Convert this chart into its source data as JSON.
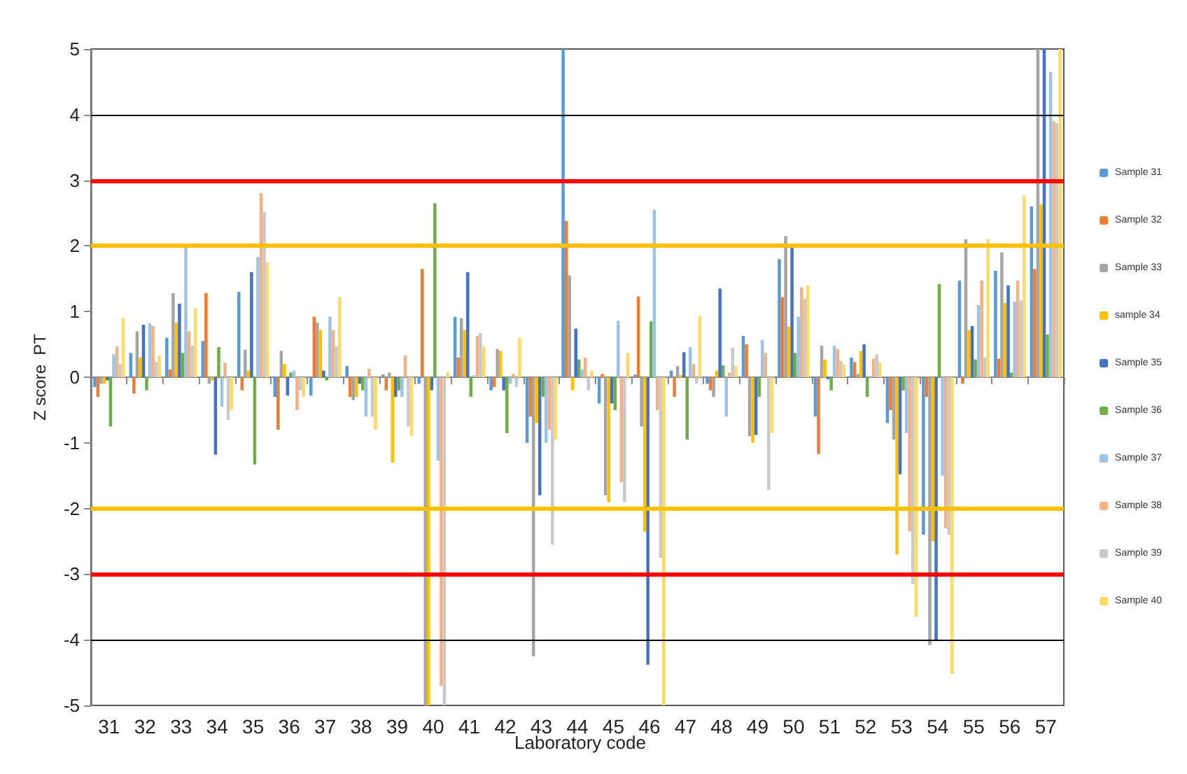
{
  "chart_data": {
    "type": "bar",
    "ylabel": "Z score  PT",
    "xlabel": "Laboratory code",
    "categories": [
      "31",
      "32",
      "33",
      "34",
      "35",
      "36",
      "37",
      "38",
      "39",
      "40",
      "41",
      "42",
      "43",
      "44",
      "45",
      "46",
      "47",
      "48",
      "49",
      "50",
      "51",
      "52",
      "53",
      "54",
      "55",
      "56",
      "57"
    ],
    "series": [
      {
        "name": "Sample 31",
        "color": "#5b9bd5",
        "values": [
          -0.15,
          0.37,
          0.6,
          0.55,
          1.3,
          -0.3,
          -0.28,
          0.17,
          0.04,
          -0.1,
          0.92,
          -0.2,
          -1.0,
          5,
          -0.4,
          0.04,
          0.1,
          -0.1,
          0.63,
          1.8,
          -0.6,
          0.3,
          -0.7,
          -2.4,
          1.47,
          1.62,
          2.6
        ]
      },
      {
        "name": "Sample 32",
        "color": "#ed7d31",
        "values": [
          -0.3,
          -0.25,
          0.12,
          1.28,
          -0.2,
          -0.8,
          0.92,
          -0.3,
          -0.2,
          1.65,
          0.3,
          -0.15,
          -0.6,
          2.38,
          0.05,
          1.23,
          -0.3,
          -0.2,
          0.5,
          1.22,
          -1.17,
          0.23,
          -0.5,
          -0.3,
          -0.1,
          0.28,
          1.65
        ]
      },
      {
        "name": "Sample 33",
        "color": "#a5a5a5",
        "values": [
          -0.1,
          0.7,
          1.28,
          -0.1,
          0.42,
          0.4,
          0.83,
          -0.35,
          0.07,
          -5,
          0.9,
          0.43,
          -4.25,
          1.55,
          -1.8,
          -0.75,
          0.17,
          -0.3,
          -0.9,
          2.15,
          0.48,
          0.05,
          -0.95,
          -4.08,
          2.1,
          1.9,
          5
        ]
      },
      {
        "name": "sample 34",
        "color": "#ffc000",
        "values": [
          -0.1,
          0.3,
          0.83,
          -0.05,
          0.1,
          0.2,
          0.72,
          -0.3,
          -1.3,
          -5,
          0.72,
          0.4,
          -0.7,
          -0.2,
          -1.9,
          -2.35,
          0.03,
          0.1,
          -1.0,
          0.77,
          0.27,
          0.4,
          -2.7,
          -2.5,
          0.72,
          1.13,
          2.63
        ]
      },
      {
        "name": "Sample 35",
        "color": "#4472c4",
        "values": [
          -0.05,
          0.8,
          1.12,
          -1.18,
          1.6,
          -0.28,
          0.1,
          -0.1,
          -0.3,
          -0.2,
          1.6,
          -0.2,
          -1.8,
          0.74,
          -0.4,
          -4.38,
          0.38,
          1.35,
          -0.88,
          1.97,
          -0.03,
          0.5,
          -1.48,
          -4.0,
          0.78,
          1.4,
          5
        ]
      },
      {
        "name": "Sample 36",
        "color": "#70ad47",
        "values": [
          -0.75,
          -0.2,
          0.37,
          0.46,
          -1.33,
          0.07,
          -0.05,
          -0.2,
          -0.2,
          2.65,
          -0.3,
          -0.85,
          -0.3,
          0.27,
          -0.5,
          0.85,
          -0.95,
          0.18,
          -0.3,
          0.37,
          -0.2,
          -0.3,
          -0.2,
          1.42,
          0.27,
          0.07,
          0.65
        ]
      },
      {
        "name": "Sample 37",
        "color": "#9dc3e6",
        "values": [
          0.35,
          0.82,
          2.0,
          -0.45,
          1.83,
          0.1,
          0.92,
          -0.6,
          -0.3,
          -1.27,
          0.03,
          -0.1,
          -1.0,
          0.12,
          0.86,
          2.55,
          0.46,
          -0.6,
          0.57,
          0.92,
          0.48,
          0.02,
          -0.85,
          -1.5,
          1.1,
          1.15,
          4.65
        ]
      },
      {
        "name": "Sample 38",
        "color": "#f4b183",
        "values": [
          0.47,
          0.78,
          0.7,
          0.22,
          2.8,
          -0.5,
          0.72,
          0.13,
          0.33,
          -4.7,
          0.63,
          0.05,
          -0.8,
          0.3,
          -1.6,
          -0.5,
          0.2,
          0.07,
          0.37,
          1.37,
          0.43,
          0.28,
          -2.35,
          -2.3,
          1.47,
          1.47,
          3.9
        ]
      },
      {
        "name": "Sample 39",
        "color": "#c9c9c9",
        "values": [
          0.2,
          0.23,
          0.48,
          -0.65,
          2.52,
          -0.2,
          0.47,
          -0.6,
          -0.75,
          -5,
          0.67,
          -0.15,
          -2.55,
          -0.2,
          -1.9,
          -2.75,
          -0.1,
          0.45,
          -1.72,
          1.2,
          0.25,
          0.35,
          -3.15,
          -2.4,
          0.3,
          1.17,
          3.87
        ]
      },
      {
        "name": "Sample 40",
        "color": "#ffd966",
        "values": [
          0.9,
          0.33,
          1.05,
          -0.5,
          1.75,
          -0.3,
          1.22,
          -0.8,
          -0.9,
          0.08,
          0.47,
          0.6,
          -0.95,
          0.1,
          0.37,
          -5,
          0.93,
          0.17,
          -0.85,
          1.4,
          0.2,
          0.23,
          -3.65,
          -4.52,
          2.1,
          2.77,
          5
        ]
      }
    ],
    "ylim": [
      -5,
      5
    ],
    "yticks": [
      -5,
      -4,
      -3,
      -2,
      -1,
      0,
      1,
      2,
      3,
      4,
      5
    ],
    "legend": "right",
    "ref_lines": [
      {
        "axis": "y",
        "value": 4,
        "color": "#000000"
      },
      {
        "axis": "y",
        "value": -4,
        "color": "#000000"
      },
      {
        "axis": "y",
        "value": 3,
        "color": "#ff0000"
      },
      {
        "axis": "y",
        "value": 2,
        "color": "#ffc000"
      },
      {
        "axis": "y",
        "value": -2,
        "color": "#ffc000"
      },
      {
        "axis": "y",
        "value": -3,
        "color": "#ff0000"
      }
    ]
  }
}
